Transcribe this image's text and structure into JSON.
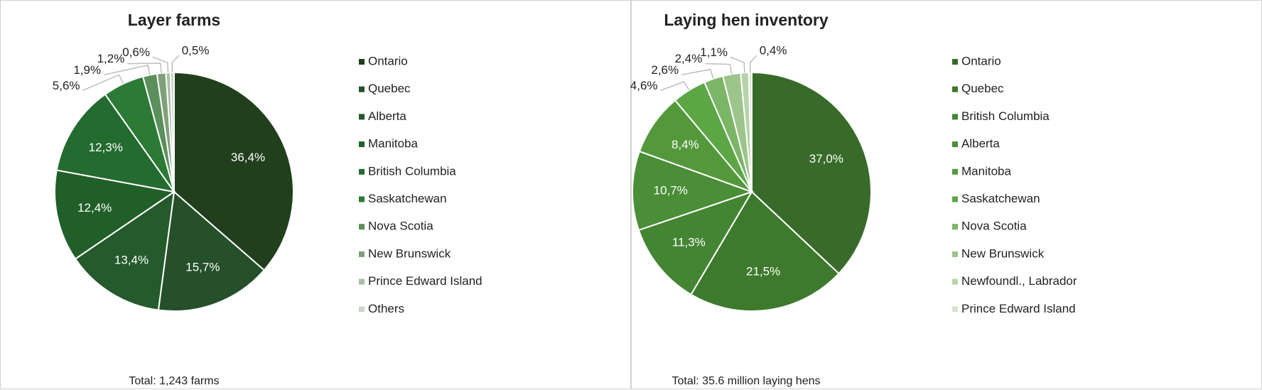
{
  "chart_data": [
    {
      "type": "pie",
      "title": "Layer farms",
      "footnote": "Total: 1,243 farms",
      "categories": [
        "Ontario",
        "Quebec",
        "Alberta",
        "Manitoba",
        "British Columbia",
        "Saskatchewan",
        "Nova Scotia",
        "New Brunswick",
        "Prince Edward Island",
        "Others"
      ],
      "values": [
        36.4,
        15.7,
        13.4,
        12.4,
        12.3,
        5.6,
        1.9,
        1.2,
        0.6,
        0.5
      ],
      "value_labels": [
        "36,4%",
        "15,7%",
        "13,4%",
        "12,4%",
        "12,3%",
        "5,6%",
        "1,9%",
        "1,2%",
        "0,6%",
        "0,5%"
      ],
      "colors": [
        "#213f1c",
        "#25502a",
        "#245a2c",
        "#215f29",
        "#246b2f",
        "#2b7a36",
        "#5b8f5b",
        "#80a07b",
        "#a9c0a5",
        "#c9d8c6"
      ],
      "legend": "right"
    },
    {
      "type": "pie",
      "title": "Laying hen inventory",
      "footnote": "Total: 35.6 million laying hens",
      "categories": [
        "Ontario",
        "Quebec",
        "British Columbia",
        "Alberta",
        "Manitoba",
        "Saskatchewan",
        "Nova Scotia",
        "New Brunswick",
        "Newfoundl., Labrador",
        "Prince Edward Island"
      ],
      "values": [
        37.0,
        21.5,
        11.3,
        10.7,
        8.4,
        4.6,
        2.6,
        2.4,
        1.1,
        0.4
      ],
      "value_labels": [
        "37,0%",
        "21,5%",
        "11,3%",
        "10,7%",
        "8,4%",
        "4,6%",
        "2,6%",
        "2,4%",
        "1,1%",
        "0,4%"
      ],
      "colors": [
        "#386b29",
        "#3d7a2d",
        "#448533",
        "#4a8e37",
        "#53993c",
        "#5ca646",
        "#7bb566",
        "#9cc48b",
        "#b7d3a9",
        "#d5e5cc"
      ],
      "legend": "right"
    }
  ]
}
